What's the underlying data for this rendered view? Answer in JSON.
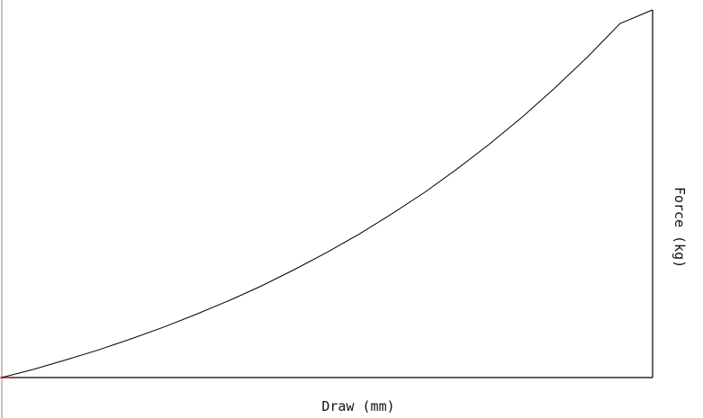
{
  "chart_data": {
    "type": "line",
    "title": "",
    "xlabel": "Draw (mm)",
    "ylabel": "Force (kg)",
    "grid": false,
    "legend": "none",
    "x": [
      0,
      5,
      10,
      15,
      20,
      25,
      30,
      35,
      40,
      45,
      50,
      55,
      60,
      65,
      70,
      75,
      80,
      85,
      90,
      95,
      100
    ],
    "series": [
      {
        "values": [
          0,
          2.3,
          4.9,
          7.6,
          10.6,
          13.8,
          17.3,
          21.0,
          25.0,
          29.4,
          34.1,
          39.1,
          44.6,
          50.4,
          56.8,
          63.6,
          70.9,
          78.8,
          87.2,
          96.3,
          100
        ]
      }
    ],
    "xlim": [
      0,
      100
    ],
    "ylim": [
      0,
      100
    ],
    "colors": {
      "line": "#000000",
      "axis": "#000000",
      "left_axis": "#888888",
      "origin_marker": "#ff0000"
    }
  }
}
